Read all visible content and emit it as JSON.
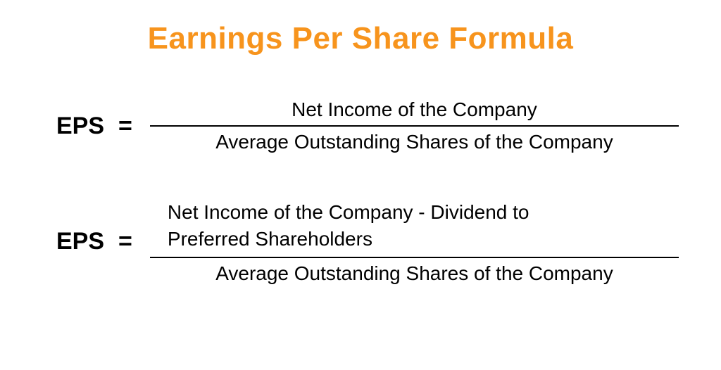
{
  "title": {
    "text": "Earnings Per Share Formula",
    "color": "#f7941d",
    "fontsize": 44,
    "font_weight": "bold"
  },
  "text_color": "#000000",
  "background_color": "#ffffff",
  "formulas": [
    {
      "lhs": "EPS",
      "equals": "=",
      "numerator": "Net Income of the Company",
      "denominator": "Average Outstanding Shares of the Company",
      "numerator_multiline": false
    },
    {
      "lhs": "EPS",
      "equals": "=",
      "numerator_line1": "Net Income of the Company - Dividend to",
      "numerator_line2": "Preferred Shareholders",
      "denominator": "Average Outstanding Shares of the Company",
      "numerator_multiline": true
    }
  ],
  "style": {
    "lhs_fontsize": 34,
    "fraction_fontsize": 28,
    "divider_color": "#000000",
    "divider_width": 2
  }
}
